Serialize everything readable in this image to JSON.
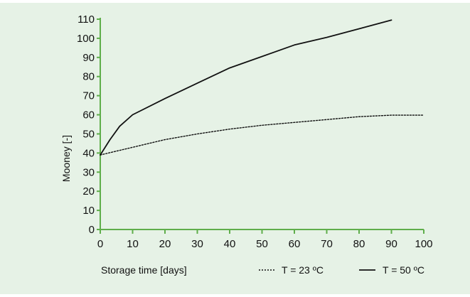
{
  "chart_data": {
    "type": "line",
    "title": "",
    "xlabel": "Storage time [days]",
    "ylabel": "Mooney [-]",
    "xlim": [
      0,
      100
    ],
    "ylim": [
      0,
      110
    ],
    "xticks": [
      0,
      10,
      20,
      30,
      40,
      50,
      60,
      70,
      80,
      90,
      100
    ],
    "yticks": [
      0,
      10,
      20,
      30,
      40,
      50,
      60,
      70,
      80,
      90,
      100,
      110
    ],
    "grid": false,
    "legend_position": "bottom",
    "series": [
      {
        "name": "T = 23 ºC",
        "style": "dotted",
        "color": "#111111",
        "x": [
          0,
          10,
          20,
          30,
          40,
          50,
          60,
          70,
          80,
          90,
          100
        ],
        "y": [
          39,
          43,
          47,
          50,
          52.5,
          54.5,
          56,
          57.5,
          59,
          59.8,
          59.8
        ]
      },
      {
        "name": "T = 50 ºC",
        "style": "solid",
        "color": "#111111",
        "x": [
          0,
          3,
          6,
          10,
          20,
          30,
          40,
          50,
          60,
          70,
          80,
          90
        ],
        "y": [
          39,
          47,
          54,
          60,
          68.5,
          76.5,
          84.5,
          90.5,
          96.5,
          100.5,
          105,
          109.5
        ]
      }
    ]
  },
  "colors": {
    "background": "#e6f2e6",
    "axis": "#5fae4b",
    "line": "#111111"
  }
}
